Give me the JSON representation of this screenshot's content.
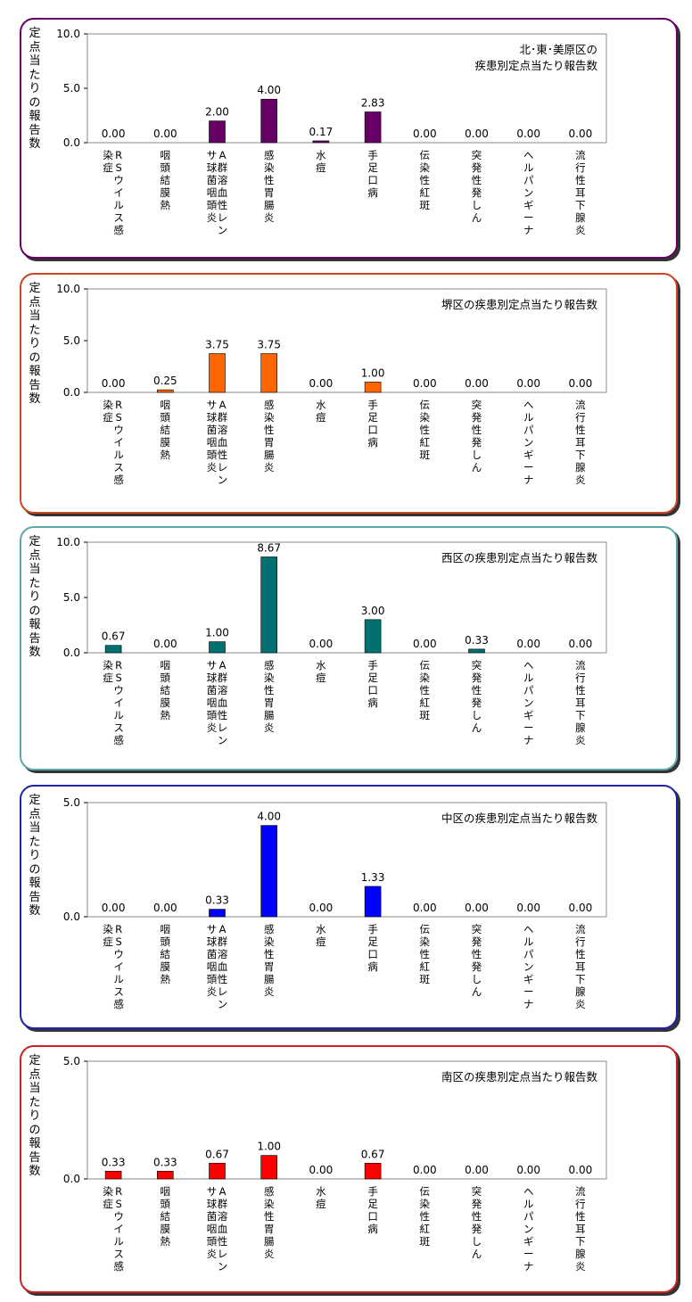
{
  "chart_data": [
    {
      "type": "bar",
      "title_lines": [
        "北･東･美原区の",
        "疾患別定点当たり報告数"
      ],
      "ylabel": "定点当たりの報告数",
      "ylim": [
        0,
        10
      ],
      "yticks": [
        "0.0",
        "5.0",
        "10.0"
      ],
      "categories": [
        "RSウイルス感染症",
        "咽頭結膜熱",
        "A群溶血性レンサ球菌咽頭炎",
        "感染性胃腸炎",
        "水痘",
        "手足口病",
        "伝染性紅斑",
        "突発性発しん",
        "ヘルパンギーナ",
        "流行性耳下腺炎"
      ],
      "values": [
        0.0,
        0.0,
        2.0,
        4.0,
        0.17,
        2.83,
        0.0,
        0.0,
        0.0,
        0.0
      ],
      "value_labels": [
        "0.00",
        "0.00",
        "2.00",
        "4.00",
        "0.17",
        "2.83",
        "0.00",
        "0.00",
        "0.00",
        "0.00"
      ],
      "color": "#660066",
      "border_color": "#660066"
    },
    {
      "type": "bar",
      "title_lines": [
        "堺区の疾患別定点当たり報告数"
      ],
      "ylabel": "定点当たりの報告数",
      "ylim": [
        0,
        10
      ],
      "yticks": [
        "0.0",
        "5.0",
        "10.0"
      ],
      "categories": [
        "RSウイルス感染症",
        "咽頭結膜熱",
        "A群溶血性レンサ球菌咽頭炎",
        "感染性胃腸炎",
        "水痘",
        "手足口病",
        "伝染性紅斑",
        "突発性発しん",
        "ヘルパンギーナ",
        "流行性耳下腺炎"
      ],
      "values": [
        0.0,
        0.25,
        3.75,
        3.75,
        0.0,
        1.0,
        0.0,
        0.0,
        0.0,
        0.0
      ],
      "value_labels": [
        "0.00",
        "0.25",
        "3.75",
        "3.75",
        "0.00",
        "1.00",
        "0.00",
        "0.00",
        "0.00",
        "0.00"
      ],
      "color": "#FF6600",
      "border_color": "#CC4422"
    },
    {
      "type": "bar",
      "title_lines": [
        "西区の疾患別定点当たり報告数"
      ],
      "ylabel": "定点当たりの報告数",
      "ylim": [
        0,
        10
      ],
      "yticks": [
        "0.0",
        "5.0",
        "10.0"
      ],
      "categories": [
        "RSウイルス感染症",
        "咽頭結膜熱",
        "A群溶血性レンサ球菌咽頭炎",
        "感染性胃腸炎",
        "水痘",
        "手足口病",
        "伝染性紅斑",
        "突発性発しん",
        "ヘルパンギーナ",
        "流行性耳下腺炎"
      ],
      "values": [
        0.67,
        0.0,
        1.0,
        8.67,
        0.0,
        3.0,
        0.0,
        0.33,
        0.0,
        0.0
      ],
      "value_labels": [
        "0.67",
        "0.00",
        "1.00",
        "8.67",
        "0.00",
        "3.00",
        "0.00",
        "0.33",
        "0.00",
        "0.00"
      ],
      "color": "#007070",
      "border_color": "#5BA8A8"
    },
    {
      "type": "bar",
      "title_lines": [
        "中区の疾患別定点当たり報告数"
      ],
      "ylabel": "定点当たりの報告数",
      "ylim": [
        0,
        5
      ],
      "yticks": [
        "0.0",
        "5.0"
      ],
      "categories": [
        "RSウイルス感染症",
        "咽頭結膜熱",
        "A群溶血性レンサ球菌咽頭炎",
        "感染性胃腸炎",
        "水痘",
        "手足口病",
        "伝染性紅斑",
        "突発性発しん",
        "ヘルパンギーナ",
        "流行性耳下腺炎"
      ],
      "values": [
        0.0,
        0.0,
        0.33,
        4.0,
        0.0,
        1.33,
        0.0,
        0.0,
        0.0,
        0.0
      ],
      "value_labels": [
        "0.00",
        "0.00",
        "0.33",
        "4.00",
        "0.00",
        "1.33",
        "0.00",
        "0.00",
        "0.00",
        "0.00"
      ],
      "color": "#0000FF",
      "border_color": "#2222AA"
    },
    {
      "type": "bar",
      "title_lines": [
        "南区の疾患別定点当たり報告数"
      ],
      "ylabel": "定点当たりの報告数",
      "ylim": [
        0,
        5
      ],
      "yticks": [
        "0.0",
        "5.0"
      ],
      "categories": [
        "RSウイルス感染症",
        "咽頭結膜熱",
        "A群溶血性レンサ球菌咽頭炎",
        "感染性胃腸炎",
        "水痘",
        "手足口病",
        "伝染性紅斑",
        "突発性発しん",
        "ヘルパンギーナ",
        "流行性耳下腺炎"
      ],
      "values": [
        0.33,
        0.33,
        0.67,
        1.0,
        0.0,
        0.67,
        0.0,
        0.0,
        0.0,
        0.0
      ],
      "value_labels": [
        "0.33",
        "0.33",
        "0.67",
        "1.00",
        "0.00",
        "0.67",
        "0.00",
        "0.00",
        "0.00",
        "0.00"
      ],
      "color": "#FF0000",
      "border_color": "#CC2222"
    }
  ]
}
